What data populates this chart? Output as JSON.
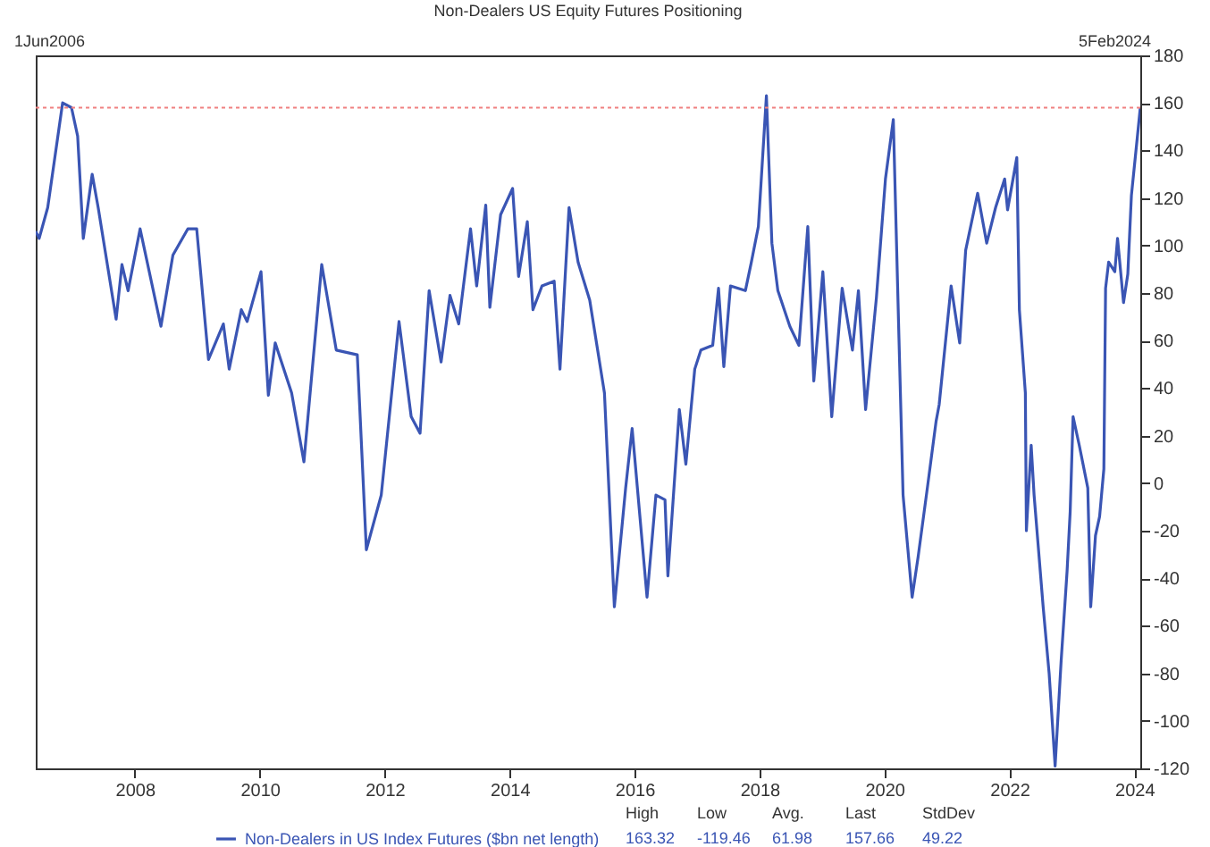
{
  "chart_data": {
    "type": "line",
    "title": "Non-Dealers US Equity Futures Positioning",
    "x": [
      "2006-06-01",
      "2006-06-21",
      "2006-08-10",
      "2006-11-05",
      "2006-12-27",
      "2007-02-01",
      "2007-03-06",
      "2007-04-27",
      "2007-06-01",
      "2007-09-14",
      "2007-10-18",
      "2007-11-23",
      "2008-02-01",
      "2008-06-02",
      "2008-08-11",
      "2008-11-06",
      "2008-12-28",
      "2009-03-07",
      "2009-06-02",
      "2009-07-06",
      "2009-09-15",
      "2009-10-19",
      "2010-01-08",
      "2010-02-20",
      "2010-04-01",
      "2010-07-06",
      "2010-09-16",
      "2010-12-29",
      "2011-03-24",
      "2011-07-25",
      "2011-09-16",
      "2011-12-12",
      "2012-03-25",
      "2012-06-04",
      "2012-07-26",
      "2012-09-17",
      "2012-11-26",
      "2013-01-17",
      "2013-03-09",
      "2013-05-17",
      "2013-06-22",
      "2013-08-14",
      "2013-09-07",
      "2013-11-09",
      "2014-01-18",
      "2014-02-22",
      "2014-04-14",
      "2014-05-17",
      "2014-07-09",
      "2014-09-18",
      "2014-10-22",
      "2014-12-14",
      "2015-02-05",
      "2015-04-14",
      "2015-07-09",
      "2015-09-05",
      "2015-11-10",
      "2015-12-18",
      "2016-03-14",
      "2016-05-05",
      "2016-06-27",
      "2016-07-14",
      "2016-09-19",
      "2016-10-27",
      "2016-12-18",
      "2017-01-23",
      "2017-04-02",
      "2017-05-06",
      "2017-06-06",
      "2017-07-15",
      "2017-10-10",
      "2017-11-14",
      "2017-12-25",
      "2018-02-10",
      "2018-03-14",
      "2018-04-18",
      "2018-06-27",
      "2018-08-19",
      "2018-10-10",
      "2018-11-14",
      "2019-01-06",
      "2019-02-27",
      "2019-04-29",
      "2019-06-28",
      "2019-08-02",
      "2019-09-13",
      "2019-11-15",
      "2020-01-07",
      "2020-02-22",
      "2020-03-26",
      "2020-04-19",
      "2020-06-11",
      "2020-07-16",
      "2020-09-08",
      "2020-10-29",
      "2020-11-16",
      "2021-01-25",
      "2021-03-16",
      "2021-04-20",
      "2021-06-29",
      "2021-08-21",
      "2021-10-12",
      "2021-12-04",
      "2021-12-21",
      "2022-02-13",
      "2022-02-28",
      "2022-04-04",
      "2022-04-10",
      "2022-05-08",
      "2022-05-25",
      "2022-07-17",
      "2022-08-21",
      "2022-09-25",
      "2022-10-30",
      "2022-12-04",
      "2022-12-22",
      "2023-01-08",
      "2023-02-13",
      "2023-04-04",
      "2023-04-21",
      "2023-05-19",
      "2023-06-12",
      "2023-07-07",
      "2023-07-17",
      "2023-08-04",
      "2023-09-09",
      "2023-09-25",
      "2023-10-30",
      "2023-11-24",
      "2023-12-15",
      "2024-02-05"
    ],
    "series": [
      {
        "name": "Non-Dealers in US Index Futures ($bn net length)",
        "color": "#3a55b4",
        "values": [
          106,
          103,
          116,
          160,
          158,
          146,
          103,
          130,
          116,
          69,
          92,
          81,
          107,
          66,
          96,
          107,
          107,
          52,
          67,
          48,
          73,
          68,
          89,
          37,
          59,
          38,
          9,
          92,
          56,
          54,
          -28,
          -5,
          68,
          28,
          21,
          81,
          51,
          79,
          67,
          107,
          83,
          117,
          74,
          113,
          124,
          87,
          110,
          73,
          83,
          85,
          48,
          116,
          93,
          77,
          38,
          -52,
          -2,
          23,
          -48,
          -5,
          -7,
          -39,
          31,
          8,
          48,
          56,
          58,
          82,
          49,
          83,
          81,
          93,
          108,
          163,
          101,
          81,
          66,
          58,
          108,
          43,
          89,
          28,
          82,
          56,
          81,
          31,
          78,
          128,
          153,
          61,
          -5,
          -48,
          -31,
          -2,
          26,
          33,
          83,
          59,
          98,
          122,
          101,
          116,
          128,
          115,
          137,
          73,
          38,
          -20,
          16,
          -5,
          -52,
          -80,
          -119,
          -75,
          -37,
          -12,
          28,
          16,
          -2,
          -52,
          -22,
          -14,
          6,
          82,
          93,
          89,
          103,
          76,
          88,
          121,
          158
        ]
      }
    ],
    "xlim": [
      "2006-06-01",
      "2024-02-05"
    ],
    "xticks": [
      "2008",
      "2010",
      "2012",
      "2014",
      "2016",
      "2018",
      "2020",
      "2022",
      "2024"
    ],
    "ylim": [
      -120,
      180
    ],
    "yticks": [
      -120,
      -100,
      -80,
      -60,
      -40,
      -20,
      0,
      20,
      40,
      60,
      80,
      100,
      120,
      140,
      160,
      180
    ],
    "ref_lines": [
      {
        "axis": "y",
        "value": 158,
        "color": "#f08080",
        "line_style": "dotted"
      }
    ],
    "annotations": [
      "1Jun2006",
      "5Feb2024",
      "High",
      "Low",
      "Avg.",
      "Last",
      "StdDev",
      "163.32",
      "-119.46",
      "61.98",
      "157.66",
      "49.22"
    ],
    "grid": false,
    "legend": "bottom"
  }
}
